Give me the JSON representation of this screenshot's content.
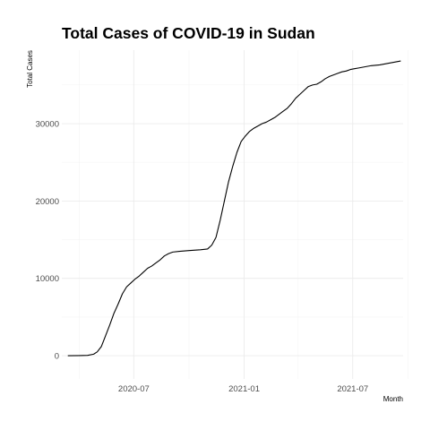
{
  "chart_data": {
    "type": "line",
    "title": "Total Cases of COVID-19 in Sudan",
    "xlabel": "Month",
    "ylabel": "Total Cases",
    "xlim": [
      "2020-03-03",
      "2021-09-23"
    ],
    "ylim": [
      -3000,
      39500
    ],
    "x_ticks": [
      {
        "date": "2020-07-01",
        "label": "2020-07"
      },
      {
        "date": "2021-01-01",
        "label": "2021-01"
      },
      {
        "date": "2021-07-01",
        "label": "2021-07"
      }
    ],
    "x_minor_ticks": [
      "2020-04-01",
      "2020-10-01",
      "2021-04-01",
      "2021-10-01"
    ],
    "y_ticks": [
      0,
      10000,
      20000,
      30000
    ],
    "y_minor_ticks": [
      5000,
      15000,
      25000,
      35000
    ],
    "grid": true,
    "legend": "none",
    "series": [
      {
        "color": "#000000",
        "points": [
          [
            "2020-03-13",
            0
          ],
          [
            "2020-04-01",
            20
          ],
          [
            "2020-04-15",
            50
          ],
          [
            "2020-04-25",
            200
          ],
          [
            "2020-05-01",
            500
          ],
          [
            "2020-05-08",
            1200
          ],
          [
            "2020-05-15",
            2600
          ],
          [
            "2020-05-22",
            4000
          ],
          [
            "2020-05-29",
            5500
          ],
          [
            "2020-06-05",
            6700
          ],
          [
            "2020-06-12",
            8000
          ],
          [
            "2020-06-19",
            8900
          ],
          [
            "2020-06-26",
            9400
          ],
          [
            "2020-07-03",
            9900
          ],
          [
            "2020-07-10",
            10300
          ],
          [
            "2020-07-17",
            10800
          ],
          [
            "2020-07-24",
            11300
          ],
          [
            "2020-07-31",
            11600
          ],
          [
            "2020-08-07",
            12000
          ],
          [
            "2020-08-14",
            12400
          ],
          [
            "2020-08-21",
            12900
          ],
          [
            "2020-08-28",
            13200
          ],
          [
            "2020-09-04",
            13400
          ],
          [
            "2020-09-15",
            13500
          ],
          [
            "2020-10-01",
            13600
          ],
          [
            "2020-10-20",
            13700
          ],
          [
            "2020-11-01",
            13800
          ],
          [
            "2020-11-08",
            14300
          ],
          [
            "2020-11-15",
            15300
          ],
          [
            "2020-11-22",
            17500
          ],
          [
            "2020-11-29",
            20000
          ],
          [
            "2020-12-06",
            22500
          ],
          [
            "2020-12-13",
            24500
          ],
          [
            "2020-12-20",
            26300
          ],
          [
            "2020-12-27",
            27700
          ],
          [
            "2021-01-03",
            28400
          ],
          [
            "2021-01-10",
            29000
          ],
          [
            "2021-01-17",
            29400
          ],
          [
            "2021-01-24",
            29700
          ],
          [
            "2021-01-31",
            30000
          ],
          [
            "2021-02-07",
            30200
          ],
          [
            "2021-02-14",
            30500
          ],
          [
            "2021-02-21",
            30800
          ],
          [
            "2021-02-28",
            31200
          ],
          [
            "2021-03-07",
            31600
          ],
          [
            "2021-03-14",
            32000
          ],
          [
            "2021-03-21",
            32600
          ],
          [
            "2021-03-28",
            33300
          ],
          [
            "2021-04-04",
            33800
          ],
          [
            "2021-04-11",
            34300
          ],
          [
            "2021-04-18",
            34800
          ],
          [
            "2021-04-25",
            35000
          ],
          [
            "2021-05-02",
            35100
          ],
          [
            "2021-05-09",
            35400
          ],
          [
            "2021-05-16",
            35800
          ],
          [
            "2021-05-23",
            36100
          ],
          [
            "2021-05-30",
            36300
          ],
          [
            "2021-06-06",
            36500
          ],
          [
            "2021-06-13",
            36700
          ],
          [
            "2021-06-20",
            36800
          ],
          [
            "2021-06-27",
            37000
          ],
          [
            "2021-07-04",
            37100
          ],
          [
            "2021-07-11",
            37200
          ],
          [
            "2021-07-18",
            37300
          ],
          [
            "2021-07-25",
            37400
          ],
          [
            "2021-08-01",
            37500
          ],
          [
            "2021-08-15",
            37600
          ],
          [
            "2021-08-29",
            37800
          ],
          [
            "2021-09-12",
            38000
          ],
          [
            "2021-09-19",
            38100
          ]
        ]
      }
    ]
  }
}
